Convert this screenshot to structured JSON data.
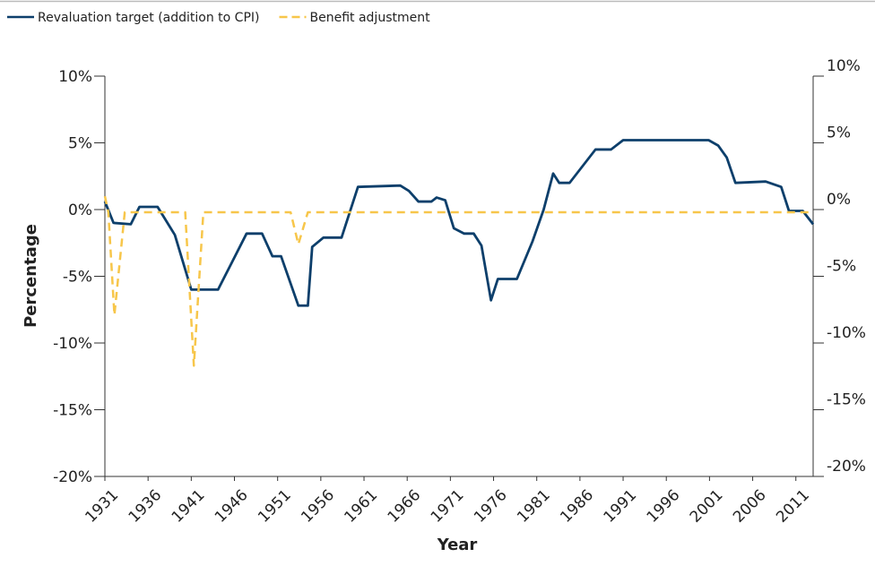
{
  "chart_data": {
    "type": "line",
    "xlabel": "Year",
    "ylabel": "Percentage",
    "xlim": [
      1931,
      2013
    ],
    "xticks": [
      1931,
      1936,
      1941,
      1946,
      1951,
      1956,
      1961,
      1966,
      1971,
      1976,
      1981,
      1986,
      1991,
      1996,
      2001,
      2006,
      2011
    ],
    "ylim": [
      -20,
      10
    ],
    "yticks": [
      {
        "value": -20,
        "label": "-20%"
      },
      {
        "value": -15,
        "label": "-15%"
      },
      {
        "value": -10,
        "label": "-10%"
      },
      {
        "value": -5,
        "label": "-5%"
      },
      {
        "value": 0,
        "label": "0%"
      },
      {
        "value": 5,
        "label": "5%"
      },
      {
        "value": 10,
        "label": "10%"
      }
    ],
    "y2lim": [
      -20,
      10
    ],
    "y2ticks": [
      {
        "value": -20,
        "label": "-20%"
      },
      {
        "value": -15,
        "label": "-15%"
      },
      {
        "value": -10,
        "label": "-10%"
      },
      {
        "value": -5,
        "label": "-5%"
      },
      {
        "value": 0,
        "label": "0%"
      },
      {
        "value": 5,
        "label": "5%"
      },
      {
        "value": 10,
        "label": "10%"
      }
    ],
    "legend": "top-left",
    "series": [
      {
        "name": "Revaluation target (addition to CPI)",
        "color": "#0d3f6b",
        "dash": false,
        "x": [
          1931,
          1932,
          1934,
          1935,
          1937.1,
          1939.1,
          1941,
          1944.1,
          1947.4,
          1949.2,
          1950.4,
          1951.4,
          1953.4,
          1954.5,
          1955,
          1956.3,
          1958.4,
          1960.3,
          1965.2,
          1966.2,
          1967.3,
          1968.8,
          1969.4,
          1970.4,
          1971.4,
          1972.6,
          1973.7,
          1974.6,
          1975.7,
          1976.5,
          1978.7,
          1980.5,
          1981.8,
          1982.9,
          1983.6,
          1984.8,
          1987.8,
          1989.6,
          1991,
          2000.9,
          2002,
          2003,
          2004,
          2007.5,
          2009.3,
          2010.2,
          2011.8,
          2013
        ],
        "values": [
          0.6,
          -1.0,
          -1.1,
          0.2,
          0.2,
          -1.9,
          -6.0,
          -6.0,
          -1.8,
          -1.8,
          -3.5,
          -3.5,
          -7.2,
          -7.2,
          -2.8,
          -2.1,
          -2.1,
          1.7,
          1.8,
          1.4,
          0.6,
          0.6,
          0.9,
          0.7,
          -1.4,
          -1.8,
          -1.8,
          -2.7,
          -6.8,
          -5.2,
          -5.2,
          -2.4,
          0,
          2.7,
          2.0,
          2.0,
          4.5,
          4.5,
          5.2,
          5.2,
          4.8,
          3.9,
          2.0,
          2.1,
          1.7,
          -0.1,
          -0.1,
          -1.1
        ]
      },
      {
        "name": "Benefit adjustment",
        "color": "#f7c64a",
        "dash": true,
        "x": [
          1931,
          1931.4,
          1932.1,
          1933.3,
          1940.3,
          1941.3,
          1942.4,
          1952.5,
          1953.4,
          1954.5,
          2013
        ],
        "values": [
          1.0,
          -0.2,
          -7.9,
          -0.2,
          -0.2,
          -11.7,
          -0.2,
          -0.2,
          -2.6,
          -0.2,
          -0.2
        ]
      }
    ]
  }
}
